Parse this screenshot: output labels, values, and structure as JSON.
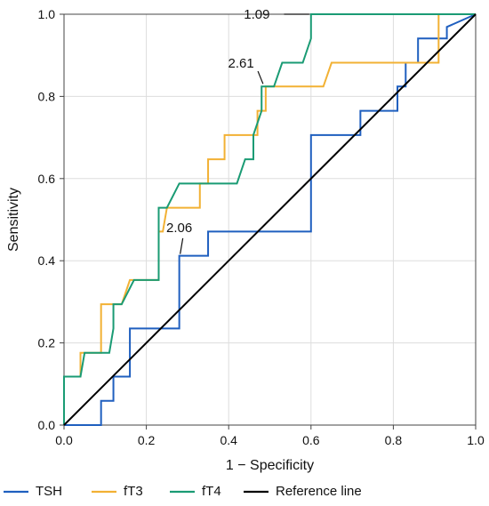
{
  "chart_data": {
    "type": "line",
    "title": "",
    "xlabel": "1 − Specificity",
    "ylabel": "Sensitivity",
    "xlim": [
      0.0,
      1.0
    ],
    "ylim": [
      0.0,
      1.0
    ],
    "xticks": [
      "0.0",
      "0.2",
      "0.4",
      "0.6",
      "0.8",
      "1.0"
    ],
    "yticks": [
      "0.0",
      "0.2",
      "0.4",
      "0.6",
      "0.8",
      "1.0"
    ],
    "grid": true,
    "legend_position": "bottom",
    "series": [
      {
        "name": "TSH",
        "color": "#1f5fbf",
        "step": true,
        "points": [
          [
            0.0,
            0.0
          ],
          [
            0.09,
            0.0
          ],
          [
            0.09,
            0.059
          ],
          [
            0.12,
            0.059
          ],
          [
            0.12,
            0.118
          ],
          [
            0.16,
            0.118
          ],
          [
            0.16,
            0.235
          ],
          [
            0.28,
            0.235
          ],
          [
            0.28,
            0.412
          ],
          [
            0.35,
            0.412
          ],
          [
            0.35,
            0.471
          ],
          [
            0.6,
            0.471
          ],
          [
            0.6,
            0.706
          ],
          [
            0.72,
            0.706
          ],
          [
            0.72,
            0.765
          ],
          [
            0.81,
            0.765
          ],
          [
            0.81,
            0.824
          ],
          [
            0.83,
            0.824
          ],
          [
            0.83,
            0.882
          ],
          [
            0.86,
            0.882
          ],
          [
            0.86,
            0.941
          ],
          [
            0.93,
            0.941
          ],
          [
            0.93,
            0.969
          ],
          [
            1.0,
            1.0
          ]
        ]
      },
      {
        "name": "fT3",
        "color": "#f2b134",
        "step": true,
        "points": [
          [
            0.0,
            0.0
          ],
          [
            0.0,
            0.118
          ],
          [
            0.04,
            0.118
          ],
          [
            0.04,
            0.176
          ],
          [
            0.09,
            0.176
          ],
          [
            0.09,
            0.294
          ],
          [
            0.14,
            0.294
          ],
          [
            0.16,
            0.353
          ],
          [
            0.23,
            0.353
          ],
          [
            0.23,
            0.471
          ],
          [
            0.24,
            0.471
          ],
          [
            0.25,
            0.529
          ],
          [
            0.33,
            0.529
          ],
          [
            0.33,
            0.588
          ],
          [
            0.35,
            0.588
          ],
          [
            0.35,
            0.647
          ],
          [
            0.39,
            0.647
          ],
          [
            0.39,
            0.706
          ],
          [
            0.47,
            0.706
          ],
          [
            0.47,
            0.765
          ],
          [
            0.49,
            0.765
          ],
          [
            0.49,
            0.824
          ],
          [
            0.63,
            0.824
          ],
          [
            0.65,
            0.882
          ],
          [
            0.91,
            0.882
          ],
          [
            0.91,
            1.0
          ],
          [
            1.0,
            1.0
          ]
        ]
      },
      {
        "name": "fT4",
        "color": "#1a9b74",
        "step": true,
        "points": [
          [
            0.0,
            0.0
          ],
          [
            0.0,
            0.118
          ],
          [
            0.04,
            0.118
          ],
          [
            0.05,
            0.176
          ],
          [
            0.11,
            0.176
          ],
          [
            0.12,
            0.235
          ],
          [
            0.12,
            0.294
          ],
          [
            0.14,
            0.294
          ],
          [
            0.17,
            0.353
          ],
          [
            0.23,
            0.353
          ],
          [
            0.23,
            0.529
          ],
          [
            0.25,
            0.529
          ],
          [
            0.28,
            0.588
          ],
          [
            0.42,
            0.588
          ],
          [
            0.44,
            0.647
          ],
          [
            0.46,
            0.647
          ],
          [
            0.46,
            0.706
          ],
          [
            0.48,
            0.765
          ],
          [
            0.48,
            0.824
          ],
          [
            0.51,
            0.824
          ],
          [
            0.53,
            0.882
          ],
          [
            0.58,
            0.882
          ],
          [
            0.6,
            0.941
          ],
          [
            0.6,
            1.0
          ],
          [
            1.0,
            1.0
          ]
        ]
      },
      {
        "name": "Reference line",
        "color": "#000000",
        "step": false,
        "points": [
          [
            0.0,
            0.0
          ],
          [
            1.0,
            1.0
          ]
        ]
      }
    ],
    "annotations": [
      {
        "text": "1.09",
        "x": 0.6,
        "y": 1.0,
        "text_x": 0.5,
        "text_y": 1.0
      },
      {
        "text": "2.61",
        "x": 0.49,
        "y": 0.824,
        "text_x": 0.43,
        "text_y": 0.87
      },
      {
        "text": "2.06",
        "x": 0.28,
        "y": 0.412,
        "text_x": 0.28,
        "text_y": 0.47
      }
    ]
  }
}
